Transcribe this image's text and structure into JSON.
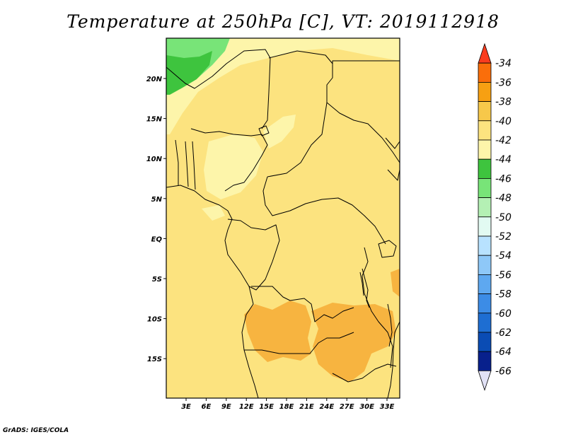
{
  "map": {
    "title": "Temperature at 250hPa [C], VT: 2019112918",
    "credit": "GrADS: IGES/COLA",
    "lat_labels": [
      "20N",
      "15N",
      "10N",
      "5N",
      "EQ",
      "5S",
      "10S",
      "15S"
    ],
    "lon_labels": [
      "3E",
      "6E",
      "9E",
      "12E",
      "15E",
      "18E",
      "21E",
      "24E",
      "27E",
      "30E",
      "33E"
    ],
    "colors": {
      "c_m38": "#f7b440",
      "c_m40": "#fce37f",
      "c_m42": "#fdf5aa",
      "c_m44": "#3ec43e",
      "c_m46": "#78e478",
      "border": "#000000"
    }
  },
  "colorbar": {
    "labels": [
      "-34",
      "-36",
      "-38",
      "-40",
      "-42",
      "-44",
      "-46",
      "-48",
      "-50",
      "-52",
      "-54",
      "-56",
      "-58",
      "-60",
      "-62",
      "-64",
      "-66"
    ],
    "colors": [
      "#fa3c1e",
      "#fa6e0a",
      "#f7a012",
      "#f7c84a",
      "#fce37f",
      "#fdf5aa",
      "#3ec43e",
      "#78e478",
      "#b4f0b4",
      "#e2faf2",
      "#b8e2ff",
      "#8ec8f8",
      "#5ea8f0",
      "#3c8ce6",
      "#1e6ed2",
      "#0a4cb4",
      "#08208c",
      "#e1e1f5"
    ]
  }
}
